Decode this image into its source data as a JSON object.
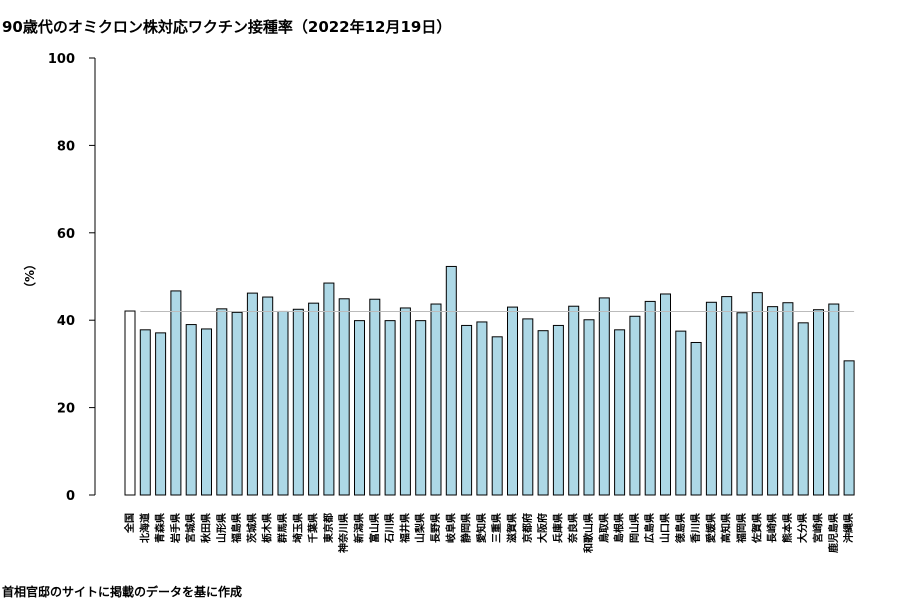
{
  "title": "90歳代のオミクロン株対応ワクチン接種率（2022年12月19日）",
  "caption": "首相官邸のサイトに掲載のデータを基に作成",
  "colors": {
    "national_bar": "#ffffff",
    "prefecture_bar": "#add8e6",
    "outline": "#000000",
    "reference_line": "#bbbbbb"
  },
  "chart_data": {
    "type": "bar",
    "title": "90歳代のオミクロン株対応ワクチン接種率（2022年12月19日）",
    "ylabel": "（%）",
    "xlabel": "",
    "ylim": [
      0,
      100
    ],
    "yticks": [
      0,
      20,
      40,
      60,
      80,
      100
    ],
    "reference_line": 42.0,
    "grid": false,
    "categories": [
      "全国",
      "北海道",
      "青森県",
      "岩手県",
      "宮城県",
      "秋田県",
      "山形県",
      "福島県",
      "茨城県",
      "栃木県",
      "群馬県",
      "埼玉県",
      "千葉県",
      "東京都",
      "神奈川県",
      "新潟県",
      "富山県",
      "石川県",
      "福井県",
      "山梨県",
      "長野県",
      "岐阜県",
      "静岡県",
      "愛知県",
      "三重県",
      "滋賀県",
      "京都府",
      "大阪府",
      "兵庫県",
      "奈良県",
      "和歌山県",
      "鳥取県",
      "島根県",
      "岡山県",
      "広島県",
      "山口県",
      "徳島県",
      "香川県",
      "愛媛県",
      "高知県",
      "福岡県",
      "佐賀県",
      "長崎県",
      "熊本県",
      "大分県",
      "宮崎県",
      "鹿児島県",
      "沖縄県"
    ],
    "values": [
      42.1,
      37.8,
      37.1,
      46.7,
      39.0,
      38.0,
      42.6,
      41.8,
      46.2,
      45.3,
      42.0,
      42.5,
      43.9,
      48.5,
      44.9,
      39.9,
      44.8,
      39.9,
      42.8,
      39.9,
      43.7,
      52.3,
      38.8,
      39.6,
      36.2,
      43.0,
      40.3,
      37.6,
      38.8,
      43.2,
      40.1,
      45.1,
      37.8,
      40.9,
      44.3,
      46.0,
      37.5,
      34.9,
      44.1,
      45.4,
      41.7,
      46.3,
      43.1,
      44.0,
      39.4,
      42.4,
      43.7,
      30.7
    ]
  }
}
